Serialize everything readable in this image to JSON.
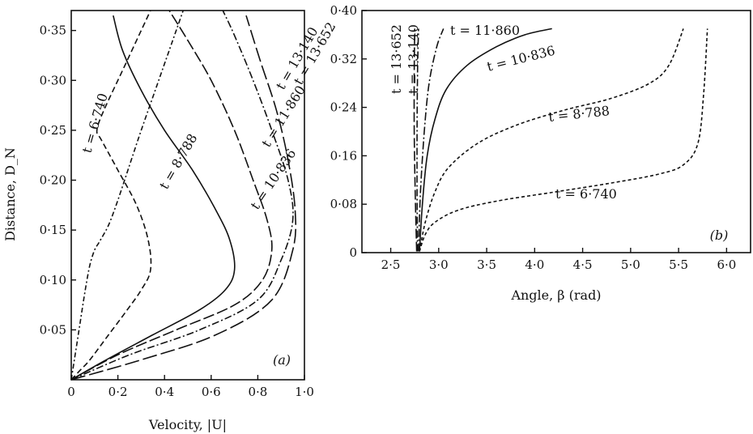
{
  "chart_data": [
    {
      "type": "line",
      "panel_label": "(a)",
      "xlabel": "Velocity, |U|",
      "ylabel": "Distance, D_N",
      "xlim": [
        0,
        1.0
      ],
      "ylim": [
        0,
        0.37
      ],
      "xticks": [
        {
          "v": 0,
          "label": "0"
        },
        {
          "v": 0.2,
          "label": "0·2"
        },
        {
          "v": 0.4,
          "label": "0·4"
        },
        {
          "v": 0.6,
          "label": "0·6"
        },
        {
          "v": 0.8,
          "label": "0·8"
        },
        {
          "v": 1.0,
          "label": "1·0"
        }
      ],
      "yticks": [
        {
          "v": 0.05,
          "label": "0·05"
        },
        {
          "v": 0.1,
          "label": "0·10"
        },
        {
          "v": 0.15,
          "label": "0·15"
        },
        {
          "v": 0.2,
          "label": "0·20"
        },
        {
          "v": 0.25,
          "label": "0·25"
        },
        {
          "v": 0.3,
          "label": "0·30"
        },
        {
          "v": 0.35,
          "label": "0·35"
        }
      ],
      "series": [
        {
          "name": "t = 6·740",
          "dash": "6,3,2,3",
          "points": [
            [
              0,
              0
            ],
            [
              0.02,
              0.03
            ],
            [
              0.04,
              0.06
            ],
            [
              0.06,
              0.09
            ],
            [
              0.08,
              0.115
            ],
            [
              0.1,
              0.13
            ],
            [
              0.12,
              0.138
            ],
            [
              0.16,
              0.155
            ],
            [
              0.2,
              0.18
            ],
            [
              0.25,
              0.215
            ],
            [
              0.3,
              0.25
            ],
            [
              0.36,
              0.29
            ],
            [
              0.42,
              0.33
            ],
            [
              0.48,
              0.37
            ]
          ]
        },
        {
          "name": "t = 8·788",
          "dash": "7,4",
          "points": [
            [
              0,
              0
            ],
            [
              0.04,
              0.01
            ],
            [
              0.08,
              0.02
            ],
            [
              0.16,
              0.045
            ],
            [
              0.24,
              0.07
            ],
            [
              0.3,
              0.09
            ],
            [
              0.34,
              0.11
            ],
            [
              0.33,
              0.14
            ],
            [
              0.28,
              0.175
            ],
            [
              0.2,
              0.21
            ],
            [
              0.13,
              0.24
            ],
            [
              0.11,
              0.25
            ],
            [
              0.14,
              0.27
            ],
            [
              0.22,
              0.31
            ],
            [
              0.29,
              0.345
            ],
            [
              0.34,
              0.37
            ]
          ]
        },
        {
          "name": "t = 10·836",
          "dash": "",
          "points": [
            [
              0,
              0
            ],
            [
              0.15,
              0.02
            ],
            [
              0.35,
              0.045
            ],
            [
              0.55,
              0.07
            ],
            [
              0.66,
              0.09
            ],
            [
              0.7,
              0.11
            ],
            [
              0.68,
              0.14
            ],
            [
              0.62,
              0.17
            ],
            [
              0.52,
              0.21
            ],
            [
              0.4,
              0.25
            ],
            [
              0.3,
              0.29
            ],
            [
              0.22,
              0.33
            ],
            [
              0.18,
              0.365
            ]
          ]
        },
        {
          "name": "t = 11·860",
          "dash": "14,4",
          "points": [
            [
              0,
              0
            ],
            [
              0.2,
              0.025
            ],
            [
              0.45,
              0.05
            ],
            [
              0.7,
              0.075
            ],
            [
              0.82,
              0.1
            ],
            [
              0.86,
              0.13
            ],
            [
              0.84,
              0.16
            ],
            [
              0.78,
              0.2
            ],
            [
              0.7,
              0.25
            ],
            [
              0.6,
              0.3
            ],
            [
              0.5,
              0.34
            ],
            [
              0.42,
              0.37
            ]
          ]
        },
        {
          "name": "t = 13·140",
          "dash": "9,3,2,3",
          "points": [
            [
              0,
              0
            ],
            [
              0.25,
              0.025
            ],
            [
              0.55,
              0.05
            ],
            [
              0.8,
              0.08
            ],
            [
              0.9,
              0.12
            ],
            [
              0.95,
              0.16
            ],
            [
              0.93,
              0.2
            ],
            [
              0.86,
              0.25
            ],
            [
              0.78,
              0.3
            ],
            [
              0.7,
              0.345
            ],
            [
              0.65,
              0.37
            ]
          ]
        },
        {
          "name": "t = 13·652",
          "dash": "18,5",
          "points": [
            [
              0,
              0
            ],
            [
              0.3,
              0.02
            ],
            [
              0.62,
              0.045
            ],
            [
              0.86,
              0.08
            ],
            [
              0.95,
              0.13
            ],
            [
              0.96,
              0.17
            ],
            [
              0.93,
              0.22
            ],
            [
              0.88,
              0.27
            ],
            [
              0.81,
              0.32
            ],
            [
              0.75,
              0.365
            ]
          ]
        }
      ]
    },
    {
      "type": "line",
      "panel_label": "(b)",
      "xlabel": "Angle, β (rad)",
      "ylabel": "",
      "xlim": [
        2.2,
        6.25
      ],
      "ylim": [
        0,
        0.4
      ],
      "xticks": [
        {
          "v": 2.5,
          "label": "2·5"
        },
        {
          "v": 3.0,
          "label": "3·0"
        },
        {
          "v": 3.5,
          "label": "3·5"
        },
        {
          "v": 4.0,
          "label": "4·0"
        },
        {
          "v": 4.5,
          "label": "4·5"
        },
        {
          "v": 5.0,
          "label": "5·0"
        },
        {
          "v": 5.5,
          "label": "5·5"
        },
        {
          "v": 6.0,
          "label": "6·0"
        }
      ],
      "yticks": [
        {
          "v": 0,
          "label": "0"
        },
        {
          "v": 0.08,
          "label": "0·08"
        },
        {
          "v": 0.16,
          "label": "0·16"
        },
        {
          "v": 0.24,
          "label": "0·24"
        },
        {
          "v": 0.32,
          "label": "0·32"
        },
        {
          "v": 0.4,
          "label": "0·40"
        }
      ],
      "series": [
        {
          "name": "t = 6·740",
          "dash": "4,3",
          "points": [
            [
              2.8,
              0.002
            ],
            [
              2.86,
              0.03
            ],
            [
              2.96,
              0.05
            ],
            [
              3.2,
              0.07
            ],
            [
              3.6,
              0.085
            ],
            [
              4.2,
              0.1
            ],
            [
              4.8,
              0.115
            ],
            [
              5.3,
              0.13
            ],
            [
              5.55,
              0.145
            ],
            [
              5.7,
              0.18
            ],
            [
              5.76,
              0.26
            ],
            [
              5.8,
              0.37
            ]
          ]
        },
        {
          "name": "t = 8·788",
          "dash": "4,3",
          "points": [
            [
              2.8,
              0.002
            ],
            [
              2.86,
              0.05
            ],
            [
              2.96,
              0.1
            ],
            [
              3.1,
              0.14
            ],
            [
              3.4,
              0.18
            ],
            [
              3.8,
              0.21
            ],
            [
              4.3,
              0.235
            ],
            [
              4.8,
              0.255
            ],
            [
              5.2,
              0.28
            ],
            [
              5.4,
              0.31
            ],
            [
              5.55,
              0.37
            ]
          ]
        },
        {
          "name": "t = 10·836",
          "dash": "",
          "points": [
            [
              2.8,
              0.002
            ],
            [
              2.83,
              0.08
            ],
            [
              2.88,
              0.16
            ],
            [
              2.96,
              0.22
            ],
            [
              3.08,
              0.27
            ],
            [
              3.3,
              0.31
            ],
            [
              3.6,
              0.34
            ],
            [
              3.9,
              0.36
            ],
            [
              4.18,
              0.37
            ]
          ]
        },
        {
          "name": "t = 11·860",
          "dash": "10,3,2,3",
          "points": [
            [
              2.79,
              0.002
            ],
            [
              2.81,
              0.1
            ],
            [
              2.85,
              0.2
            ],
            [
              2.9,
              0.28
            ],
            [
              2.98,
              0.34
            ],
            [
              3.05,
              0.37
            ]
          ]
        },
        {
          "name": "t = 13·140",
          "dash": "9,3,2,3",
          "points": [
            [
              2.78,
              0.002
            ],
            [
              2.775,
              0.1
            ],
            [
              2.775,
              0.2
            ],
            [
              2.78,
              0.3
            ],
            [
              2.79,
              0.37
            ]
          ]
        },
        {
          "name": "t = 13·652",
          "dash": "12,4",
          "points": [
            [
              2.77,
              0.002
            ],
            [
              2.755,
              0.1
            ],
            [
              2.745,
              0.2
            ],
            [
              2.745,
              0.3
            ],
            [
              2.75,
              0.37
            ]
          ]
        }
      ]
    }
  ],
  "labels": {
    "a_6740": "t = 6·740",
    "a_8788": "t = 8·788",
    "a_10836": "t = 10·836",
    "a_11860": "t = 11·860",
    "a_13140": "t = 13·140",
    "a_13652": "t = 13·652",
    "b_13652": "t = 13·652",
    "b_13140": "t = 13·140",
    "b_11860": "t = 11·860",
    "b_10836": "t = 10·836",
    "b_8788": "t = 8·788",
    "b_6740": "t = 6·740"
  }
}
